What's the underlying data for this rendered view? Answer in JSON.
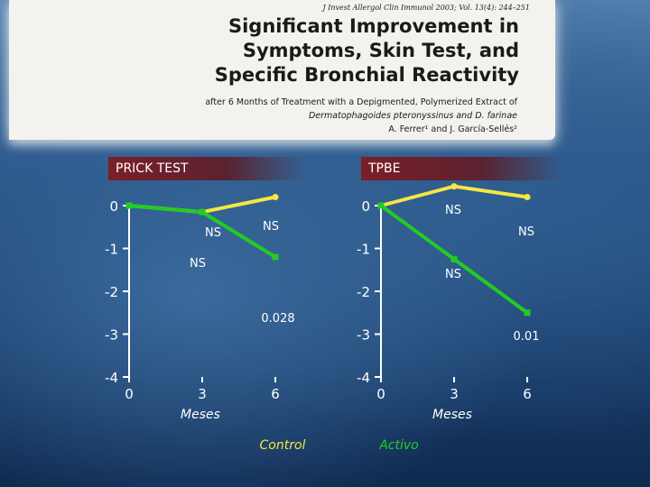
{
  "header": {
    "citation": "J Invest Allergol Clin Immunol 2003; Vol. 13(4): 244–251",
    "title_lines": [
      "Significant Improvement in",
      "Symptoms, Skin Test, and",
      "Specific Bronchial Reactivity"
    ],
    "subtitle_line1": "after 6 Months of Treatment with a Depigmented, Polymerized Extract of",
    "subtitle_line2": "Dermatophagoides pteronyssinus and D. farinae",
    "authors": "A. Ferrer¹ and J. García-Sellés²"
  },
  "colors": {
    "control": "#f5e642",
    "activo": "#22cc22",
    "axis": "#ffffff"
  },
  "chart_data": [
    {
      "type": "line",
      "title": "PRICK TEST",
      "x": [
        0,
        3,
        6
      ],
      "x_tick_labels": [
        "0",
        "3",
        "6"
      ],
      "xlabel": "Meses",
      "y_ticks": [
        0,
        -1,
        -2,
        -3,
        -4
      ],
      "ylim": [
        -4,
        0
      ],
      "series": [
        {
          "name": "Control",
          "values": [
            0,
            -0.15,
            0.2
          ],
          "color": "#f5e642"
        },
        {
          "name": "Activo",
          "values": [
            0,
            -0.15,
            -1.2
          ],
          "color": "#22cc22"
        }
      ],
      "annotations": [
        "NS",
        "NS",
        "NS",
        "0.028"
      ]
    },
    {
      "type": "line",
      "title": "TPBE",
      "x": [
        0,
        3,
        6
      ],
      "x_tick_labels": [
        "0",
        "3",
        "6"
      ],
      "xlabel": "Meses",
      "y_ticks": [
        0,
        -1,
        -2,
        -3,
        -4
      ],
      "ylim": [
        -4,
        0
      ],
      "series": [
        {
          "name": "Control",
          "values": [
            0,
            0.45,
            0.2
          ],
          "color": "#f5e642"
        },
        {
          "name": "Activo",
          "values": [
            0,
            -1.25,
            -2.5
          ],
          "color": "#22cc22"
        }
      ],
      "annotations": [
        "NS",
        "NS",
        "NS",
        "0.01"
      ]
    }
  ],
  "legend": {
    "control": "Control",
    "activo": "Activo"
  }
}
